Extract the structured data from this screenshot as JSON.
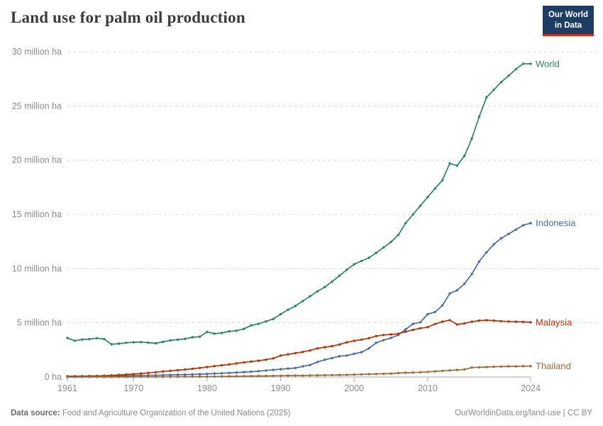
{
  "header": {
    "title": "Land use for palm oil production",
    "logo": {
      "line1": "Our World",
      "line2": "in Data"
    }
  },
  "footer": {
    "source_label": "Data source:",
    "source_text": " Food and Agriculture Organization of the United Nations (2025)",
    "link_text": "OurWorldinData.org/land-use | CC BY"
  },
  "colors": {
    "world": "#2C8465",
    "indonesia": "#4C6A9C",
    "malaysia": "#B13507",
    "thailand": "#996D39",
    "grid": "#dcdcdc",
    "axis": "#a8a8a8",
    "tick_text": "#8c8c8c",
    "logo_bg": "#1d3d63",
    "logo_stripe": "#d42b21"
  },
  "chart_data": {
    "type": "line",
    "title": "Land use for palm oil production",
    "xlabel": "",
    "ylabel": "million ha",
    "xlim": [
      1961,
      2024
    ],
    "ylim": [
      0,
      30
    ],
    "grid": "horizontal dashed",
    "legend_position": "end-of-line labels",
    "x_ticks": [
      1961,
      1970,
      1980,
      1990,
      2000,
      2010,
      2024
    ],
    "y_ticks": [
      0,
      5,
      10,
      15,
      20,
      25,
      30
    ],
    "y_tick_labels": [
      "0 ha",
      "5 million ha",
      "10 million ha",
      "15 million ha",
      "20 million ha",
      "25 million ha",
      "30 million ha"
    ],
    "x": [
      1961,
      1962,
      1963,
      1964,
      1965,
      1966,
      1967,
      1968,
      1969,
      1970,
      1971,
      1972,
      1973,
      1974,
      1975,
      1976,
      1977,
      1978,
      1979,
      1980,
      1981,
      1982,
      1983,
      1984,
      1985,
      1986,
      1987,
      1988,
      1989,
      1990,
      1991,
      1992,
      1993,
      1994,
      1995,
      1996,
      1997,
      1998,
      1999,
      2000,
      2001,
      2002,
      2003,
      2004,
      2005,
      2006,
      2007,
      2008,
      2009,
      2010,
      2011,
      2012,
      2013,
      2014,
      2015,
      2016,
      2017,
      2018,
      2019,
      2020,
      2021,
      2022,
      2023,
      2024
    ],
    "series": [
      {
        "name": "World",
        "color": "#2C8465",
        "values": [
          3.6,
          3.35,
          3.46,
          3.5,
          3.58,
          3.5,
          3.02,
          3.08,
          3.16,
          3.2,
          3.22,
          3.17,
          3.11,
          3.24,
          3.38,
          3.45,
          3.52,
          3.67,
          3.72,
          4.15,
          4.0,
          4.06,
          4.21,
          4.27,
          4.44,
          4.76,
          4.91,
          5.13,
          5.36,
          5.8,
          6.2,
          6.55,
          7.0,
          7.45,
          7.9,
          8.3,
          8.8,
          9.35,
          9.9,
          10.4,
          10.7,
          11.0,
          11.45,
          11.95,
          12.45,
          13.1,
          14.2,
          15.0,
          15.8,
          16.6,
          17.4,
          18.15,
          19.7,
          19.5,
          20.4,
          22.0,
          24.0,
          25.8,
          26.5,
          27.2,
          27.8,
          28.4,
          28.9,
          28.9
        ]
      },
      {
        "name": "Indonesia",
        "color": "#4C6A9C",
        "values": [
          0.07,
          0.07,
          0.08,
          0.08,
          0.09,
          0.09,
          0.1,
          0.11,
          0.12,
          0.13,
          0.14,
          0.15,
          0.16,
          0.18,
          0.19,
          0.21,
          0.22,
          0.24,
          0.26,
          0.29,
          0.32,
          0.35,
          0.38,
          0.41,
          0.45,
          0.49,
          0.54,
          0.6,
          0.66,
          0.72,
          0.78,
          0.83,
          0.98,
          1.11,
          1.38,
          1.59,
          1.75,
          1.92,
          1.98,
          2.14,
          2.29,
          2.64,
          3.16,
          3.4,
          3.6,
          3.88,
          4.4,
          4.9,
          5.05,
          5.8,
          6.0,
          6.6,
          7.7,
          8.0,
          8.6,
          9.5,
          10.65,
          11.5,
          12.25,
          12.8,
          13.2,
          13.6,
          14.0,
          14.2
        ]
      },
      {
        "name": "Malaysia",
        "color": "#B13507",
        "values": [
          0.06,
          0.07,
          0.08,
          0.09,
          0.1,
          0.12,
          0.15,
          0.19,
          0.23,
          0.27,
          0.32,
          0.38,
          0.44,
          0.51,
          0.57,
          0.63,
          0.69,
          0.76,
          0.84,
          0.92,
          1.0,
          1.08,
          1.16,
          1.25,
          1.35,
          1.43,
          1.5,
          1.6,
          1.72,
          1.98,
          2.09,
          2.2,
          2.31,
          2.45,
          2.64,
          2.75,
          2.85,
          3.0,
          3.2,
          3.34,
          3.45,
          3.58,
          3.78,
          3.88,
          3.93,
          3.99,
          4.18,
          4.35,
          4.5,
          4.6,
          4.89,
          5.1,
          5.25,
          4.85,
          4.95,
          5.1,
          5.2,
          5.24,
          5.2,
          5.15,
          5.12,
          5.1,
          5.08,
          5.05
        ]
      },
      {
        "name": "Thailand",
        "color": "#996D39",
        "values": [
          0.003,
          0.003,
          0.004,
          0.004,
          0.005,
          0.005,
          0.006,
          0.007,
          0.008,
          0.01,
          0.011,
          0.013,
          0.015,
          0.017,
          0.02,
          0.023,
          0.026,
          0.03,
          0.035,
          0.04,
          0.046,
          0.052,
          0.058,
          0.067,
          0.077,
          0.085,
          0.094,
          0.1,
          0.11,
          0.12,
          0.13,
          0.14,
          0.14,
          0.15,
          0.16,
          0.17,
          0.18,
          0.19,
          0.2,
          0.22,
          0.24,
          0.26,
          0.28,
          0.3,
          0.32,
          0.36,
          0.39,
          0.41,
          0.44,
          0.47,
          0.52,
          0.57,
          0.61,
          0.65,
          0.7,
          0.87,
          0.9,
          0.92,
          0.95,
          0.96,
          0.98,
          0.98,
          1.0,
          1.0
        ]
      }
    ]
  }
}
